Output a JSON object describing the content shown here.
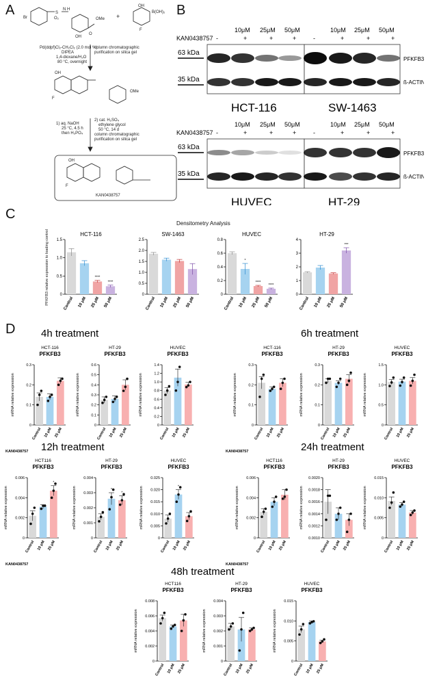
{
  "panels": {
    "A": "A",
    "B": "B",
    "C": "C",
    "D": "D"
  },
  "synthesis": {
    "reagent_r1": "Br",
    "reagent_so2": "S",
    "reagent_o2": "O₂",
    "reagent_nh": "N H",
    "reagent_ome": "OMe",
    "reagent_oh": "OH",
    "reagent_o": "O",
    "plus": "+",
    "boronic_oh": "OH",
    "boronic_b": "B(OH)₂",
    "boronic_f": "F",
    "step1_conditions": [
      "Pd(ddpf)Cl₂-CH₂Cl₂ (2.0 mol %)",
      "DIPEA",
      "1,4-dioxane/H₂O",
      "80 °C, overnight"
    ],
    "step1_purification": [
      "column chromatographic",
      "purification on silica gel"
    ],
    "step2_conditions_a": [
      "1)  aq. NaOH",
      "25 °C, 4.5 h",
      "then H₃PO₄"
    ],
    "step2_conditions_b": [
      "2)  cat. H₂SO₄",
      "ethylene glycol",
      "50 °C, 14 d",
      "column chromatographic",
      "purification on silica gel"
    ],
    "product_name": "KAN0438757",
    "inter_oh": "OH",
    "inter_f": "F",
    "inter_ome": "OMe",
    "prod_oh": "OH",
    "prod_f": "F"
  },
  "blots": {
    "treatment_label": "KAN0438757",
    "concentrations": [
      "10μM",
      "25μM",
      "50μM"
    ],
    "signs": [
      "-",
      "+",
      "+",
      "+"
    ],
    "kda_63": "63 kDa",
    "kda_35": "35 kDa",
    "band_top": "PFKFB3",
    "band_bottom": "ß-ACTIN",
    "cells_top": [
      "HCT-116",
      "SW-1463"
    ],
    "cells_bottom": [
      "HUVEC",
      "HT-29"
    ]
  },
  "densitometry": {
    "title": "Densitometry Analysis",
    "ylabel": "PFKFB3 relative expression to loading control",
    "categories": [
      "Control",
      "10 μM",
      "25 μM",
      "50 μM"
    ],
    "colors": [
      "#d9d9d9",
      "#a6d3f0",
      "#f0a4a4",
      "#c9b2e0"
    ]
  },
  "qpcr": {
    "ylabel": "mRNA relative expression",
    "categories": [
      "Control",
      "10 μM",
      "25 μM"
    ],
    "gene": "PFKFB3",
    "treatment_label": "KAN0438757",
    "colors": [
      "#d9d9d9",
      "#a6d3f0",
      "#f8b0b0"
    ],
    "timepoints": [
      "4h treatment",
      "6h treatment",
      "12h treatment",
      "24h treatment",
      "48h treatment"
    ]
  },
  "chart_data": [
    {
      "type": "bar",
      "title": "HCT-116",
      "categories": [
        "Control",
        "10 μM",
        "25 μM",
        "50 μM"
      ],
      "values": [
        1.15,
        0.85,
        0.35,
        0.22
      ],
      "errors": [
        0.1,
        0.07,
        0.03,
        0.03
      ],
      "ylim": [
        0,
        1.5
      ],
      "yticks": [
        0,
        0.5,
        1.0,
        1.5
      ],
      "stars": [
        "",
        "",
        "****",
        "****"
      ]
    },
    {
      "type": "bar",
      "title": "SW-1463",
      "categories": [
        "Control",
        "10 μM",
        "25 μM",
        "50 μM"
      ],
      "values": [
        1.85,
        1.58,
        1.52,
        1.15
      ],
      "errors": [
        0.06,
        0.07,
        0.07,
        0.25
      ],
      "ylim": [
        0,
        2.5
      ],
      "yticks": [
        0,
        0.5,
        1.0,
        1.5,
        2.0,
        2.5
      ],
      "stars": [
        "",
        "",
        "",
        ""
      ]
    },
    {
      "type": "bar",
      "title": "HUVEC",
      "categories": [
        "Control",
        "10 μM",
        "25 μM",
        "50 μM"
      ],
      "values": [
        0.6,
        0.37,
        0.12,
        0.08
      ],
      "errors": [
        0.02,
        0.08,
        0.01,
        0.01
      ],
      "ylim": [
        0,
        0.8
      ],
      "yticks": [
        0,
        0.2,
        0.4,
        0.6,
        0.8
      ],
      "stars": [
        "",
        "*",
        "****",
        "****"
      ]
    },
    {
      "type": "bar",
      "title": "HT-29",
      "categories": [
        "Control",
        "10 μM",
        "25 μM",
        "50 μM"
      ],
      "values": [
        1.6,
        1.95,
        1.52,
        3.2
      ],
      "errors": [
        0.05,
        0.15,
        0.05,
        0.2
      ],
      "ylim": [
        0,
        4
      ],
      "yticks": [
        0,
        1,
        2,
        3,
        4
      ],
      "stars": [
        "",
        "",
        "",
        "***"
      ]
    },
    {
      "type": "bar",
      "timepoint": "4h",
      "cell": "HCT-116",
      "values": [
        0.14,
        0.14,
        0.22
      ],
      "errors": [
        0.02,
        0.015,
        0.015
      ],
      "points": [
        [
          0.1,
          0.15,
          0.17
        ],
        [
          0.12,
          0.14,
          0.15
        ],
        [
          0.2,
          0.22,
          0.23
        ]
      ],
      "ylim": [
        0,
        0.3
      ],
      "yticks": [
        0,
        0.1,
        0.2,
        0.3
      ],
      "stars": [
        "",
        "",
        ""
      ]
    },
    {
      "type": "bar",
      "timepoint": "4h",
      "cell": "HT-29",
      "values": [
        0.25,
        0.26,
        0.4
      ],
      "errors": [
        0.03,
        0.03,
        0.05
      ],
      "points": [
        [
          0.22,
          0.25,
          0.28
        ],
        [
          0.23,
          0.26,
          0.28
        ],
        [
          0.34,
          0.38,
          0.46
        ]
      ],
      "ylim": [
        0,
        0.6
      ],
      "yticks": [
        0,
        0.1,
        0.2,
        0.3,
        0.4,
        0.5,
        0.6
      ],
      "stars": [
        "",
        "",
        ""
      ]
    },
    {
      "type": "bar",
      "timepoint": "4h",
      "cell": "HUVEC",
      "values": [
        0.8,
        1.1,
        0.94
      ],
      "errors": [
        0.07,
        0.2,
        0.05
      ],
      "points": [
        [
          0.7,
          0.8,
          0.9
        ],
        [
          0.8,
          1.0,
          1.35
        ],
        [
          0.88,
          0.92,
          1.0
        ]
      ],
      "ylim": [
        0,
        1.4
      ],
      "yticks": [
        0,
        0.2,
        0.4,
        0.6,
        0.8,
        1.0,
        1.2,
        1.4
      ],
      "ybase": 0.6,
      "stars": [
        "",
        "",
        ""
      ]
    },
    {
      "type": "bar",
      "timepoint": "6h",
      "cell": "HCT-116",
      "values": [
        0.21,
        0.18,
        0.21
      ],
      "errors": [
        0.03,
        0.01,
        0.02
      ],
      "points": [
        [
          0.14,
          0.23,
          0.25
        ],
        [
          0.17,
          0.18,
          0.19
        ],
        [
          0.18,
          0.21,
          0.23
        ]
      ],
      "ylim": [
        0,
        0.3
      ],
      "yticks": [
        0,
        0.1,
        0.2,
        0.3
      ],
      "stars": [
        "",
        "",
        ""
      ]
    },
    {
      "type": "bar",
      "timepoint": "6h",
      "cell": "HT-29",
      "values": [
        0.22,
        0.21,
        0.23
      ],
      "errors": [
        0.01,
        0.01,
        0.02
      ],
      "points": [
        [
          0.21,
          0.23,
          0.23
        ],
        [
          0.19,
          0.21,
          0.23
        ],
        [
          0.2,
          0.22,
          0.26
        ]
      ],
      "ylim": [
        0,
        0.3
      ],
      "yticks": [
        0,
        0.1,
        0.2,
        0.3
      ],
      "stars": [
        "",
        "",
        ""
      ]
    },
    {
      "type": "bar",
      "timepoint": "6h",
      "cell": "HUVEC",
      "values": [
        1.07,
        1.08,
        1.1
      ],
      "errors": [
        0.06,
        0.06,
        0.08
      ],
      "points": [
        [
          0.97,
          1.06,
          1.18
        ],
        [
          0.98,
          1.07,
          1.18
        ],
        [
          0.98,
          1.1,
          1.25
        ]
      ],
      "ylim": [
        0,
        1.5
      ],
      "yticks": [
        0,
        0.5,
        1.0,
        1.5
      ],
      "ybase": 0.5,
      "stars": [
        "",
        "",
        ""
      ]
    },
    {
      "type": "bar",
      "timepoint": "12h",
      "cell": "HCT116",
      "values": [
        0.0022,
        0.0031,
        0.0047
      ],
      "errors": [
        0.0005,
        0.0002,
        0.0005
      ],
      "points": [
        [
          0.0014,
          0.0024,
          0.003
        ],
        [
          0.0029,
          0.0032,
          0.0032
        ],
        [
          0.004,
          0.0047,
          0.0054
        ]
      ],
      "ylim": [
        0,
        0.006
      ],
      "yticks": [
        0,
        0.002,
        0.004,
        0.006
      ],
      "stars": [
        "",
        "",
        "*"
      ]
    },
    {
      "type": "bar",
      "timepoint": "12h",
      "cell": "HT-29",
      "values": [
        0.0014,
        0.0026,
        0.0025
      ],
      "errors": [
        0.0002,
        0.0004,
        0.0003
      ],
      "points": [
        [
          0.0011,
          0.0014,
          0.0017
        ],
        [
          0.0019,
          0.0027,
          0.0032
        ],
        [
          0.0022,
          0.0025,
          0.0029
        ]
      ],
      "ylim": [
        0,
        0.004
      ],
      "yticks": [
        0,
        0.001,
        0.002,
        0.003,
        0.004
      ],
      "stars": [
        "",
        "*",
        "*"
      ]
    },
    {
      "type": "bar",
      "timepoint": "12h",
      "cell": "HUVEC",
      "values": [
        0.008,
        0.018,
        0.009
      ],
      "errors": [
        0.0015,
        0.002,
        0.0015
      ],
      "points": [
        [
          0.006,
          0.008,
          0.01
        ],
        [
          0.015,
          0.018,
          0.021
        ],
        [
          0.007,
          0.009,
          0.011
        ]
      ],
      "ylim": [
        0,
        0.025
      ],
      "yticks": [
        0,
        0.005,
        0.01,
        0.015,
        0.02,
        0.025
      ],
      "stars": [
        "",
        "*",
        ""
      ]
    },
    {
      "type": "bar",
      "timepoint": "24h",
      "cell": "HCT116",
      "values": [
        0.0026,
        0.0036,
        0.0043
      ],
      "errors": [
        0.0003,
        0.0004,
        0.0005
      ],
      "points": [
        [
          0.0021,
          0.0026,
          0.0029
        ],
        [
          0.0031,
          0.0036,
          0.0041
        ],
        [
          0.0039,
          0.0041,
          0.0048
        ]
      ],
      "ylim": [
        0,
        0.006
      ],
      "yticks": [
        0,
        0.002,
        0.004,
        0.006
      ],
      "stars": [
        "",
        "",
        ""
      ]
    },
    {
      "type": "bar",
      "timepoint": "24h",
      "cell": "HT-29",
      "values": [
        0.0016,
        0.0014,
        0.0013
      ],
      "errors": [
        0.0002,
        0.0001,
        0.0001
      ],
      "points": [
        [
          0.0013,
          0.0017,
          0.0017
        ],
        [
          0.0013,
          0.0014,
          0.0015
        ],
        [
          0.0011,
          0.0013,
          0.0014
        ]
      ],
      "ylim": [
        0.001,
        0.002
      ],
      "yticks": [
        0.001,
        0.0012,
        0.0014,
        0.0016,
        0.0018,
        0.002
      ],
      "ybase": 0.001,
      "stars": [
        "",
        "",
        ""
      ]
    },
    {
      "type": "bar",
      "timepoint": "24h",
      "cell": "HUVEC",
      "values": [
        0.0092,
        0.0083,
        0.0063
      ],
      "errors": [
        0.001,
        0.0005,
        0.0005
      ],
      "points": [
        [
          0.0075,
          0.0088,
          0.0113
        ],
        [
          0.0078,
          0.0083,
          0.009
        ],
        [
          0.0057,
          0.0063,
          0.0068
        ]
      ],
      "ylim": [
        0,
        0.015
      ],
      "yticks": [
        0,
        0.005,
        0.01,
        0.015
      ],
      "stars": [
        "",
        "",
        ""
      ]
    },
    {
      "type": "bar",
      "timepoint": "48h",
      "cell": "HCT116",
      "values": [
        0.0057,
        0.0046,
        0.0054
      ],
      "errors": [
        0.0004,
        0.0002,
        0.0008
      ],
      "points": [
        [
          0.005,
          0.0057,
          0.0064
        ],
        [
          0.0043,
          0.0046,
          0.0048
        ],
        [
          0.004,
          0.0054,
          0.0062
        ]
      ],
      "ylim": [
        0,
        0.008
      ],
      "yticks": [
        0,
        0.002,
        0.004,
        0.006,
        0.008
      ],
      "stars": [
        "",
        "",
        ""
      ]
    },
    {
      "type": "bar",
      "timepoint": "48h",
      "cell": "HT-29",
      "values": [
        0.0023,
        0.0021,
        0.0021
      ],
      "errors": [
        0.0002,
        0.0008,
        0.0001
      ],
      "points": [
        [
          0.0021,
          0.0023,
          0.0025
        ],
        [
          0.0007,
          0.0021,
          0.0032
        ],
        [
          0.002,
          0.0021,
          0.0022
        ]
      ],
      "ylim": [
        0,
        0.004
      ],
      "yticks": [
        0,
        0.001,
        0.002,
        0.003,
        0.004
      ],
      "stars": [
        "",
        "",
        ""
      ]
    },
    {
      "type": "bar",
      "timepoint": "48h",
      "cell": "HUVEC",
      "values": [
        0.0079,
        0.0097,
        0.0049
      ],
      "errors": [
        0.0008,
        0.0003,
        0.0003
      ],
      "points": [
        [
          0.0066,
          0.0079,
          0.0092
        ],
        [
          0.0094,
          0.0097,
          0.0099
        ],
        [
          0.0045,
          0.0049,
          0.0054
        ]
      ],
      "ylim": [
        0,
        0.015
      ],
      "yticks": [
        0,
        0.005,
        0.01,
        0.015
      ],
      "stars": [
        "",
        "",
        ""
      ]
    }
  ]
}
